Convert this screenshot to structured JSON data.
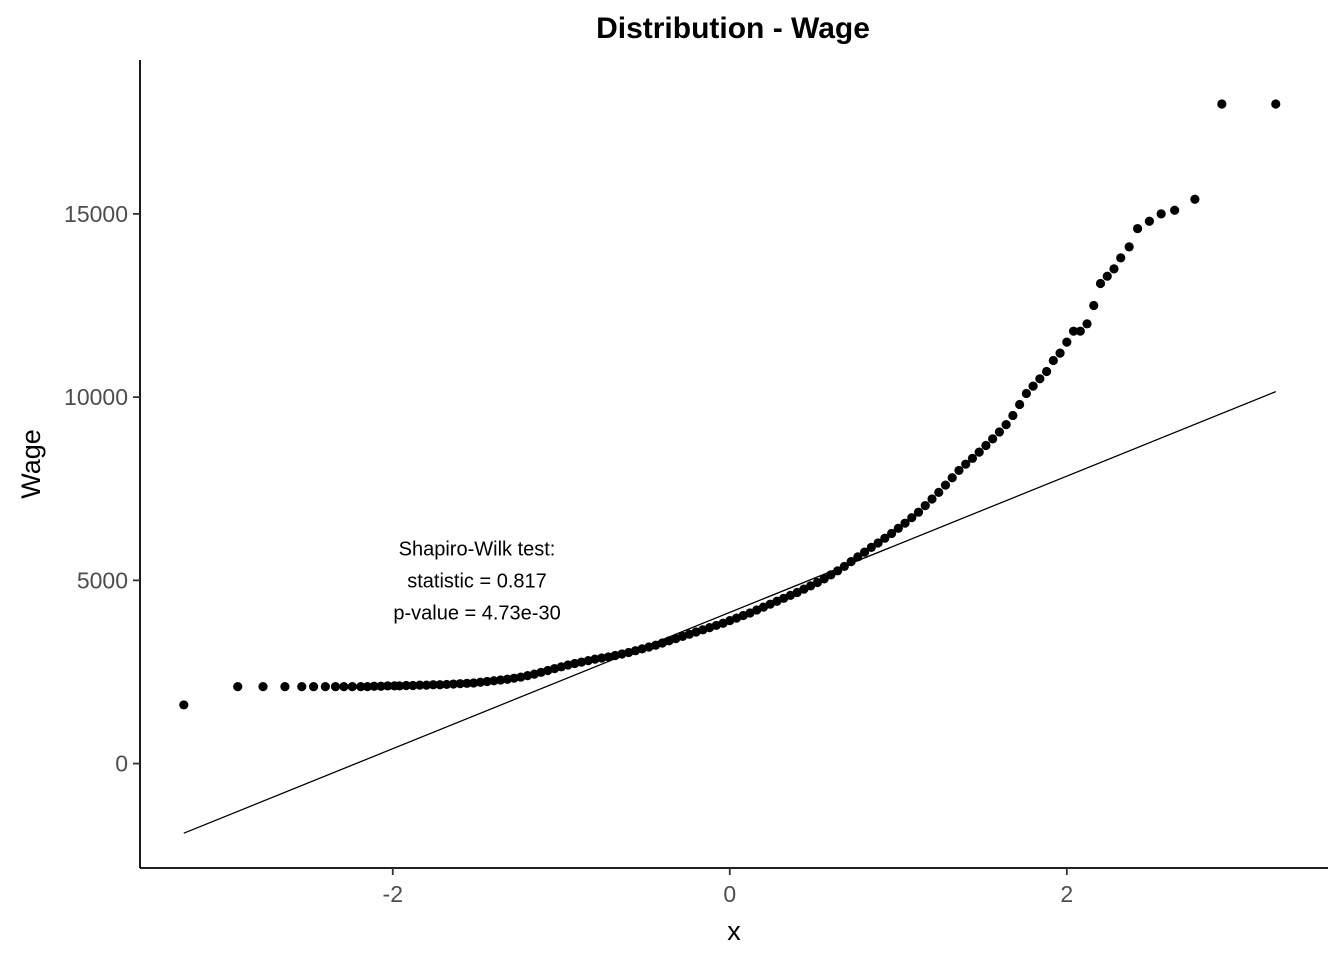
{
  "chart_data": {
    "type": "scatter",
    "title": "Distribution - Wage",
    "xlabel": "x",
    "ylabel": "Wage",
    "xlim": [
      -3.5,
      3.55
    ],
    "ylim": [
      -2850,
      19200
    ],
    "x_ticks": [
      -2,
      0,
      2
    ],
    "x_tick_labels": [
      "-2",
      "0",
      "2"
    ],
    "y_ticks": [
      0,
      5000,
      10000,
      15000
    ],
    "y_tick_labels": [
      "0",
      "5000",
      "10000",
      "15000"
    ],
    "grid": false,
    "reference_line": {
      "x": [
        -3.24,
        3.24
      ],
      "y": [
        -1900,
        10150
      ]
    },
    "annotation": {
      "lines": [
        "Shapiro-Wilk test:",
        "statistic = 0.817",
        "p-value = 4.73e-30"
      ],
      "x": -1.5,
      "y": 5000
    },
    "point_color": "#000000",
    "line_color": "#000000",
    "series": [
      {
        "x": [
          -3.24,
          -2.92,
          -2.77,
          -2.64,
          -2.54,
          -2.47,
          -2.4,
          -2.34,
          -2.29,
          -2.24,
          -2.19,
          -2.15,
          -2.11,
          -2.07,
          -2.03,
          -1.99,
          -1.96,
          -1.92,
          -1.88,
          -1.84,
          -1.8,
          -1.76,
          -1.72,
          -1.68,
          -1.64,
          -1.6,
          -1.56,
          -1.52,
          -1.48,
          -1.44,
          -1.4,
          -1.36,
          -1.32,
          -1.28,
          -1.24,
          -1.2,
          -1.16,
          -1.12,
          -1.08,
          -1.04,
          -1.0,
          -0.96,
          -0.92,
          -0.88,
          -0.84,
          -0.8,
          -0.76,
          -0.72,
          -0.68,
          -0.64,
          -0.6,
          -0.56,
          -0.52,
          -0.48,
          -0.44,
          -0.4,
          -0.36,
          -0.32,
          -0.28,
          -0.24,
          -0.2,
          -0.16,
          -0.12,
          -0.08,
          -0.04,
          0.0,
          0.04,
          0.08,
          0.12,
          0.16,
          0.2,
          0.24,
          0.28,
          0.32,
          0.36,
          0.4,
          0.44,
          0.48,
          0.52,
          0.56,
          0.6,
          0.64,
          0.68,
          0.72,
          0.76,
          0.8,
          0.84,
          0.88,
          0.92,
          0.96,
          1.0,
          1.04,
          1.08,
          1.12,
          1.16,
          1.2,
          1.24,
          1.28,
          1.32,
          1.36,
          1.4,
          1.44,
          1.48,
          1.52,
          1.56,
          1.6,
          1.64,
          1.68,
          1.72,
          1.76,
          1.8,
          1.84,
          1.88,
          1.92,
          1.96,
          2.0,
          2.04,
          2.08,
          2.12,
          2.16,
          2.2,
          2.24,
          2.28,
          2.32,
          2.37,
          2.42,
          2.49,
          2.56,
          2.64,
          2.76,
          2.92,
          3.24
        ],
        "y": [
          1600,
          2100,
          2100,
          2100,
          2100,
          2100,
          2100,
          2100,
          2100,
          2100,
          2100,
          2100,
          2110,
          2110,
          2120,
          2120,
          2120,
          2130,
          2130,
          2140,
          2140,
          2150,
          2150,
          2160,
          2170,
          2180,
          2190,
          2200,
          2220,
          2240,
          2260,
          2280,
          2300,
          2330,
          2360,
          2400,
          2440,
          2490,
          2540,
          2590,
          2640,
          2690,
          2730,
          2770,
          2810,
          2850,
          2880,
          2910,
          2950,
          2990,
          3030,
          3080,
          3130,
          3180,
          3230,
          3290,
          3350,
          3410,
          3470,
          3530,
          3590,
          3650,
          3710,
          3770,
          3830,
          3900,
          3970,
          4040,
          4110,
          4190,
          4270,
          4350,
          4430,
          4510,
          4590,
          4670,
          4760,
          4850,
          4940,
          5040,
          5150,
          5260,
          5380,
          5510,
          5640,
          5770,
          5900,
          6020,
          6150,
          6280,
          6420,
          6560,
          6710,
          6860,
          7040,
          7220,
          7400,
          7600,
          7800,
          8000,
          8170,
          8330,
          8500,
          8680,
          8860,
          9050,
          9250,
          9500,
          9800,
          10100,
          10300,
          10500,
          10700,
          11000,
          11200,
          11500,
          11800,
          11800,
          12000,
          12500,
          13100,
          13300,
          13500,
          13800,
          14100,
          14600,
          14800,
          15000,
          15100,
          15400,
          18000,
          18000
        ]
      }
    ]
  }
}
